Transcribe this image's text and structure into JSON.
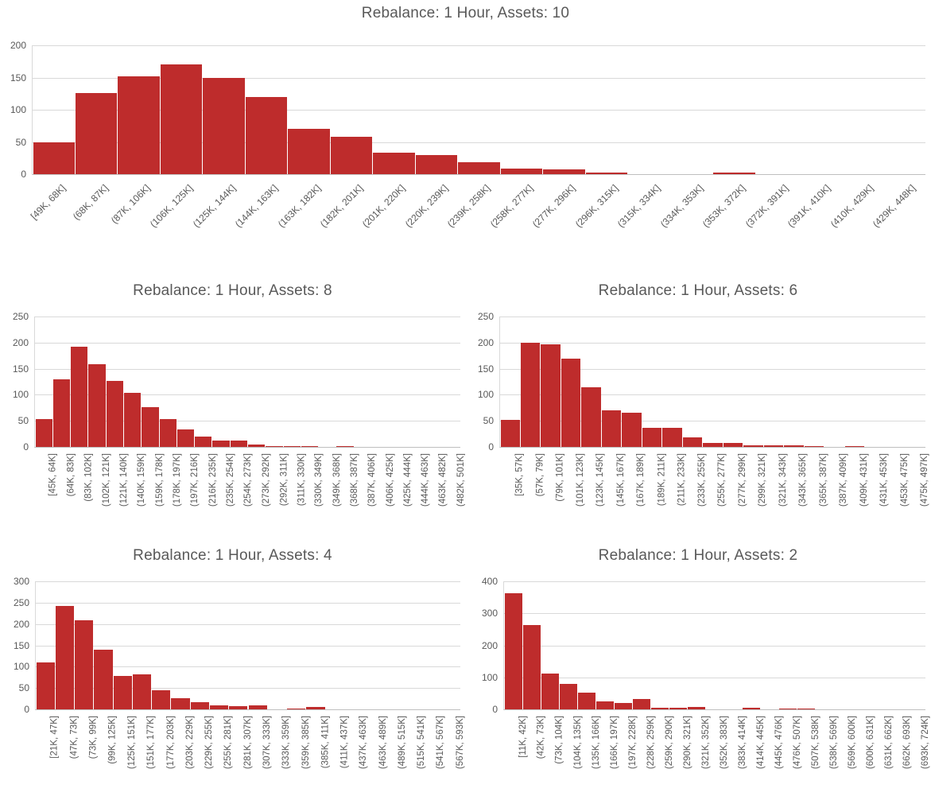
{
  "colors": {
    "bar": "#be2c2c",
    "gridline": "#d9d9d9",
    "axis_line": "#bfbfbf",
    "text": "#595959",
    "background": "#ffffff"
  },
  "chart_data": [
    {
      "type": "bar",
      "title": "Rebalance: 1 Hour, Assets: 10",
      "grid": true,
      "legend": "none",
      "x_label_rotation": 45,
      "ylim": [
        0,
        200
      ],
      "y_ticks": [
        0,
        50,
        100,
        150,
        200
      ],
      "categories": [
        "[49K, 68K]",
        "(68K, 87K]",
        "(87K, 106K]",
        "(106K, 125K]",
        "(125K, 144K]",
        "(144K, 163K]",
        "(163K, 182K]",
        "(182K, 201K]",
        "(201K, 220K]",
        "(220K, 239K]",
        "(239K, 258K]",
        "(258K, 277K]",
        "(277K, 296K]",
        "(296K, 315K]",
        "(315K, 334K]",
        "(334K, 353K]",
        "(353K, 372K]",
        "(372K, 391K]",
        "(391K, 410K]",
        "(410K, 429K]",
        "(429K, 448K]"
      ],
      "values": [
        50,
        126,
        152,
        171,
        149,
        120,
        70,
        58,
        34,
        30,
        19,
        9,
        8,
        2,
        0,
        0,
        2,
        0,
        0,
        0,
        0
      ]
    },
    {
      "type": "bar",
      "title": "Rebalance: 1 Hour, Assets: 8",
      "grid": true,
      "legend": "none",
      "x_label_rotation": 90,
      "ylim": [
        0,
        250
      ],
      "y_ticks": [
        0,
        50,
        100,
        150,
        200,
        250
      ],
      "categories": [
        "[45K, 64K]",
        "(64K, 83K]",
        "(83K, 102K]",
        "(102K, 121K]",
        "(121K, 140K]",
        "(140K, 159K]",
        "(159K, 178K]",
        "(178K, 197K]",
        "(197K, 216K]",
        "(216K, 235K]",
        "(235K, 254K]",
        "(254K, 273K]",
        "(273K, 292K]",
        "(292K, 311K]",
        "(311K, 330K]",
        "(330K, 349K]",
        "(349K, 368K]",
        "(368K, 387K]",
        "(387K, 406K]",
        "(406K, 425K]",
        "(425K, 444K]",
        "(444K, 463K]",
        "(463K, 482K]",
        "(482K, 501K]"
      ],
      "values": [
        54,
        129,
        192,
        159,
        126,
        104,
        77,
        53,
        34,
        20,
        13,
        13,
        4,
        2,
        2,
        2,
        0,
        2,
        0,
        0,
        0,
        0,
        0,
        0
      ]
    },
    {
      "type": "bar",
      "title": "Rebalance: 1 Hour, Assets: 6",
      "grid": true,
      "legend": "none",
      "x_label_rotation": 90,
      "ylim": [
        0,
        250
      ],
      "y_ticks": [
        0,
        50,
        100,
        150,
        200,
        250
      ],
      "categories": [
        "[35K, 57K]",
        "(57K, 79K]",
        "(79K, 101K]",
        "(101K, 123K]",
        "(123K, 145K]",
        "(145K, 167K]",
        "(167K, 189K]",
        "(189K, 211K]",
        "(211K, 233K]",
        "(233K, 255K]",
        "(255K, 277K]",
        "(277K, 299K]",
        "(299K, 321K]",
        "(321K, 343K]",
        "(343K, 365K]",
        "(365K, 387K]",
        "(387K, 409K]",
        "(409K, 431K]",
        "(431K, 453K]",
        "(453K, 475K]",
        "(475K, 497K]"
      ],
      "values": [
        52,
        200,
        197,
        169,
        115,
        70,
        65,
        36,
        37,
        19,
        8,
        8,
        3,
        3,
        3,
        2,
        0,
        2,
        0,
        0,
        0
      ]
    },
    {
      "type": "bar",
      "title": "Rebalance: 1 Hour, Assets: 4",
      "grid": true,
      "legend": "none",
      "x_label_rotation": 90,
      "ylim": [
        0,
        300
      ],
      "y_ticks": [
        0,
        50,
        100,
        150,
        200,
        250,
        300
      ],
      "categories": [
        "[21K, 47K]",
        "(47K, 73K]",
        "(73K, 99K]",
        "(99K, 125K]",
        "(125K, 151K]",
        "(151K, 177K]",
        "(177K, 203K]",
        "(203K, 229K]",
        "(229K, 255K]",
        "(255K, 281K]",
        "(281K, 307K]",
        "(307K, 333K]",
        "(333K, 359K]",
        "(359K, 385K]",
        "(385K, 411K]",
        "(411K, 437K]",
        "(437K, 463K]",
        "(463K, 489K]",
        "(489K, 515K]",
        "(515K, 541K]",
        "(541K, 567K]",
        "(567K, 593K]"
      ],
      "values": [
        110,
        242,
        208,
        140,
        79,
        82,
        44,
        27,
        16,
        9,
        7,
        10,
        0,
        2,
        6,
        0,
        0,
        0,
        0,
        0,
        0,
        0
      ]
    },
    {
      "type": "bar",
      "title": "Rebalance: 1 Hour, Assets: 2",
      "grid": true,
      "legend": "none",
      "x_label_rotation": 90,
      "ylim": [
        0,
        400
      ],
      "y_ticks": [
        0,
        100,
        200,
        300,
        400
      ],
      "categories": [
        "[11K, 42K]",
        "(42K, 73K]",
        "(73K, 104K]",
        "(104K, 135K]",
        "(135K, 166K]",
        "(166K, 197K]",
        "(197K, 228K]",
        "(228K, 259K]",
        "(259K, 290K]",
        "(290K, 321K]",
        "(321K, 352K]",
        "(352K, 383K]",
        "(383K, 414K]",
        "(414K, 445K]",
        "(445K, 476K]",
        "(476K, 507K]",
        "(507K, 538K]",
        "(538K, 569K]",
        "(569K, 600K]",
        "(600K, 631K]",
        "(631K, 662K]",
        "(662K, 693K]",
        "(693K, 724K]"
      ],
      "values": [
        363,
        263,
        112,
        80,
        52,
        25,
        21,
        33,
        5,
        4,
        7,
        0,
        0,
        6,
        0,
        3,
        3,
        0,
        0,
        0,
        0,
        0,
        0
      ]
    }
  ]
}
